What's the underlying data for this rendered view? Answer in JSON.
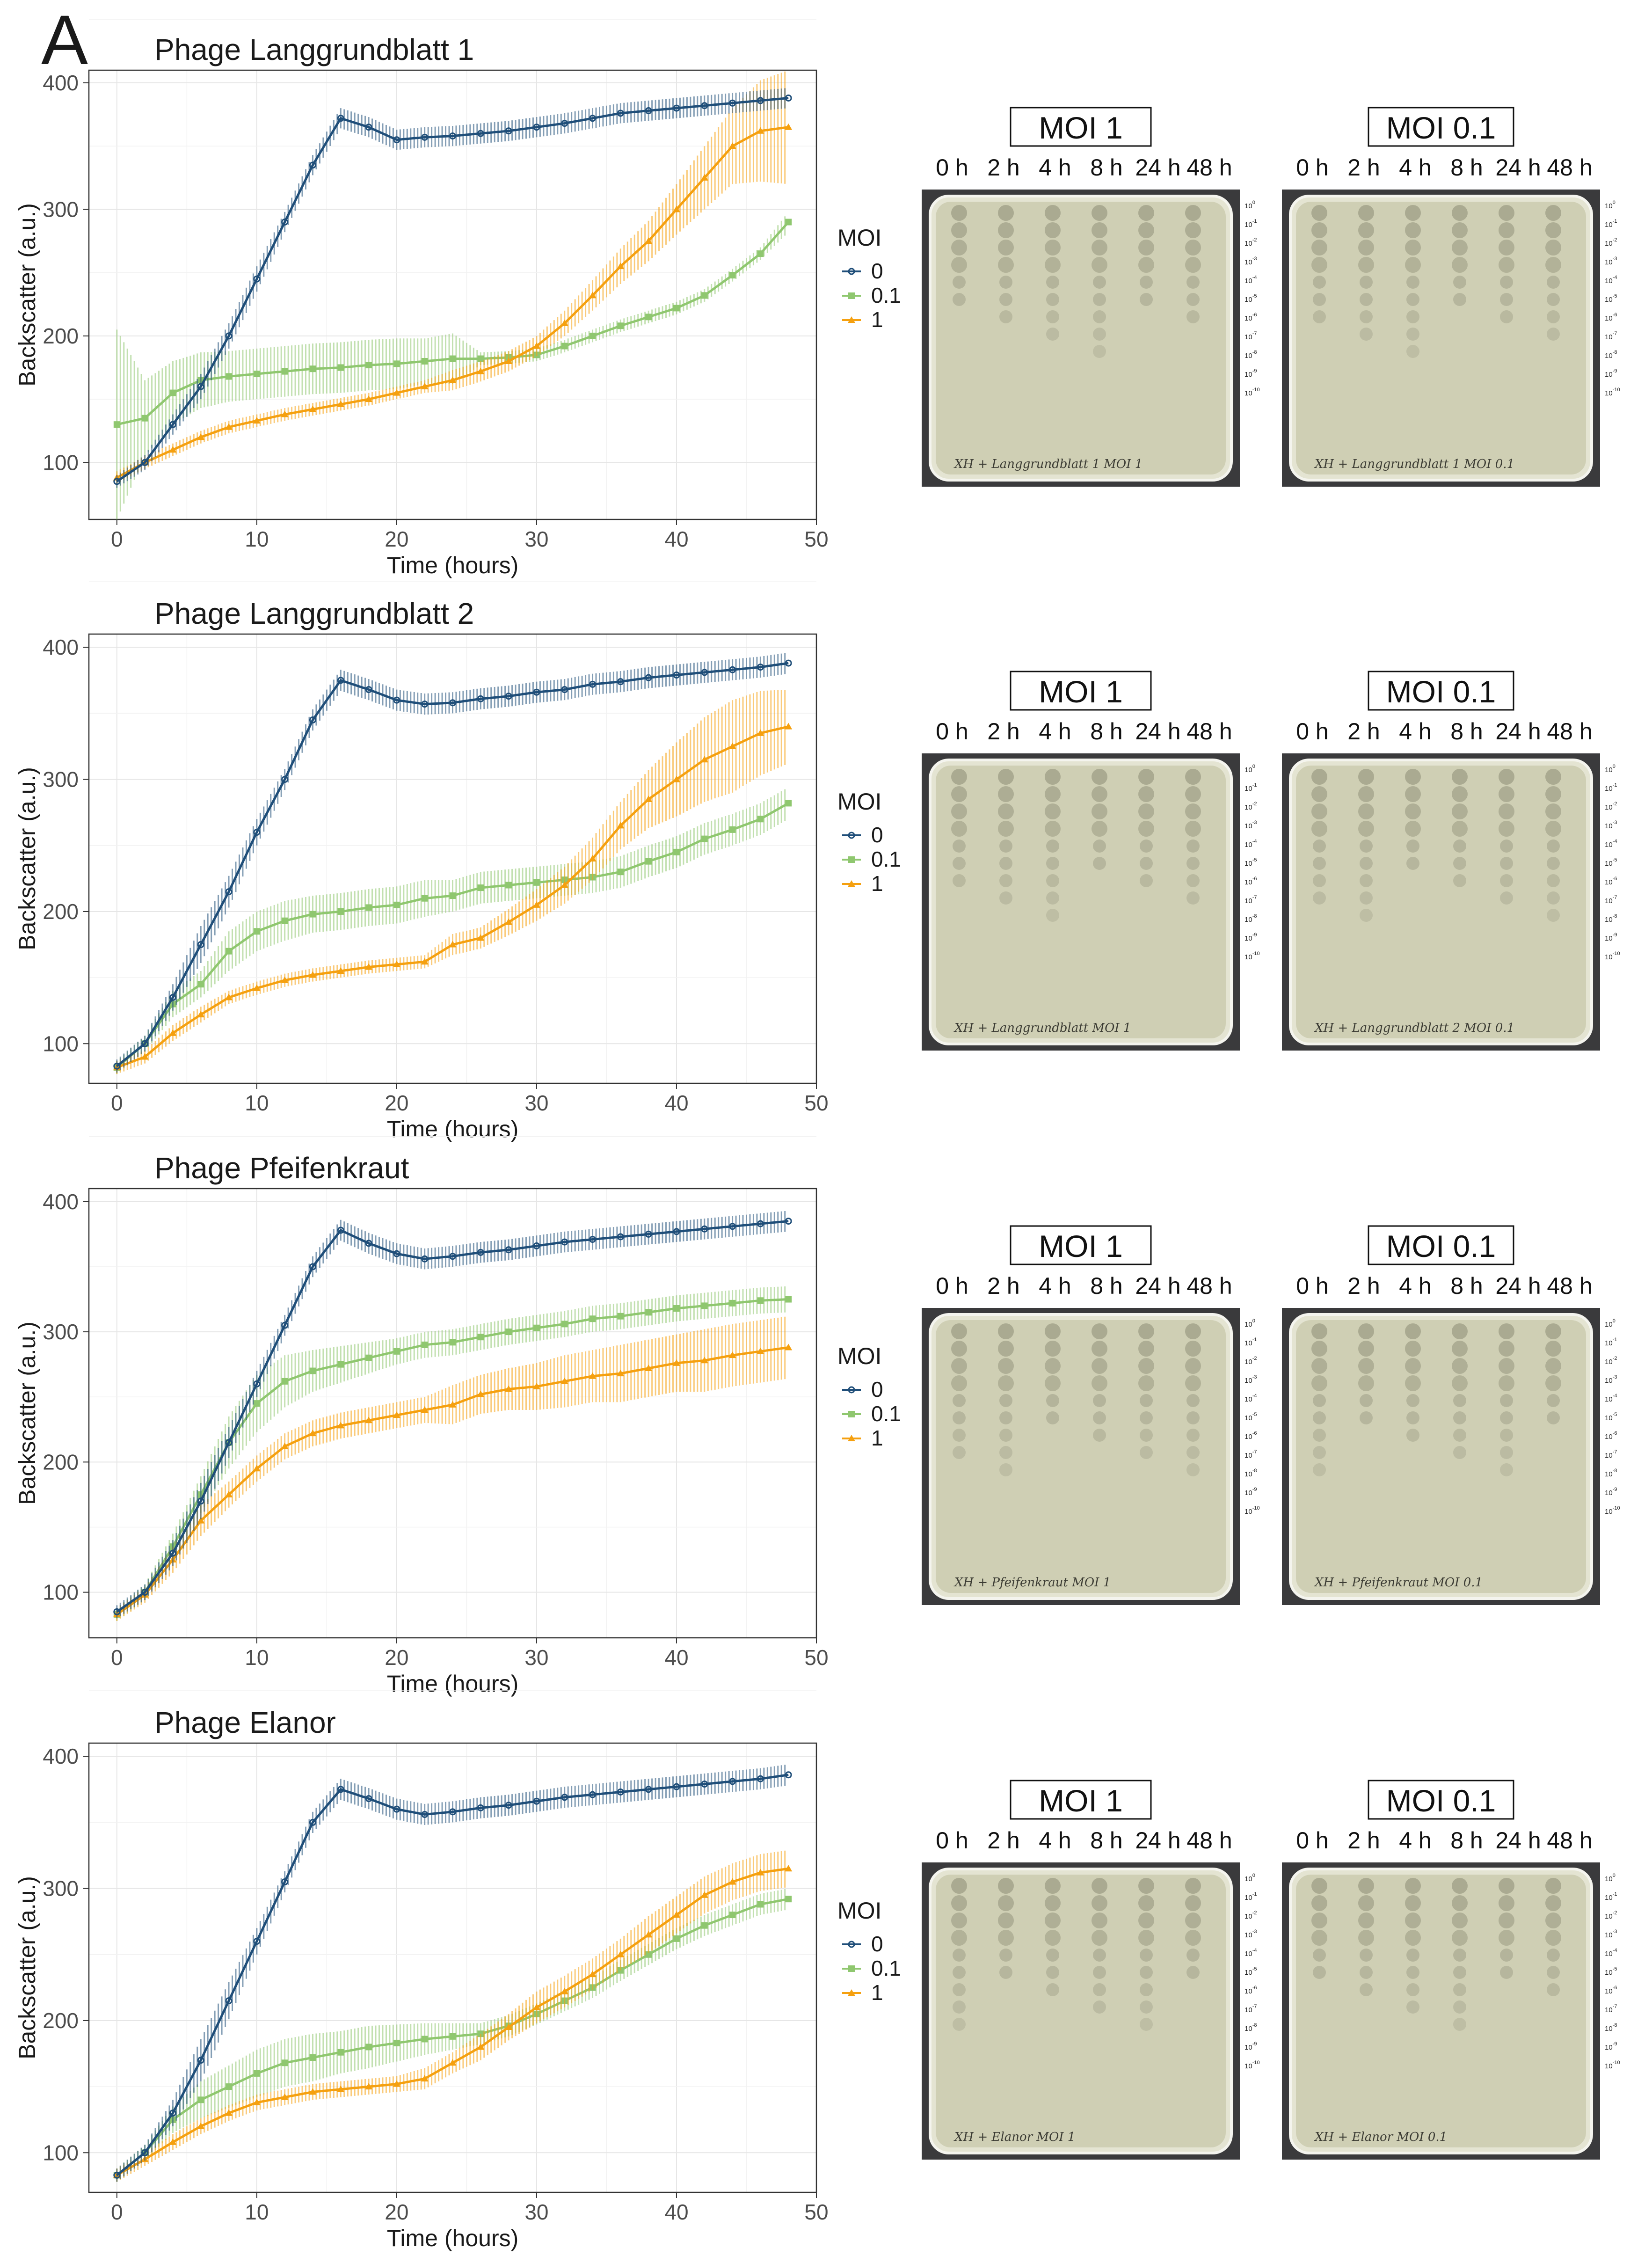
{
  "panel_label": "A",
  "legend": {
    "title": "MOI",
    "entries": [
      {
        "label": "0",
        "color": "#1f4e79",
        "shape": "circle"
      },
      {
        "label": "0.1",
        "color": "#8fc76f",
        "shape": "square"
      },
      {
        "label": "1",
        "color": "#f5a00f",
        "shape": "triangle"
      }
    ]
  },
  "plates": {
    "moi_labels": [
      "MOI 1",
      "MOI 0.1"
    ],
    "timepoints": [
      "0 h",
      "2 h",
      "4 h",
      "8 h",
      "24 h",
      "48 h"
    ],
    "dilution_labels": [
      "10^0",
      "10^-1",
      "10^-2",
      "10^-3",
      "10^-4",
      "10^-5",
      "10^-6",
      "10^-7",
      "10^-8",
      "10^-9",
      "10^-10"
    ],
    "handwritten": [
      [
        "XH + Langgrundblatt 1 MOI 1",
        "XH + Langgrundblatt 1 MOI 0.1"
      ],
      [
        "XH + Langgrundblatt MOI 1",
        "XH + Langgrundblatt 2 MOI 0.1"
      ],
      [
        "XH + Pfeifenkraut MOI 1",
        "XH + Pfeifenkraut MOI 0.1"
      ],
      [
        "XH + Elanor MOI 1",
        "XH + Elanor MOI 0.1"
      ]
    ]
  },
  "chart_data": [
    {
      "type": "line",
      "title": "Phage Langgrundblatt 1",
      "xlabel": "Time (hours)",
      "ylabel": "Backscatter (a.u.)",
      "xlim": [
        -2,
        50
      ],
      "ylim": [
        55,
        410
      ],
      "xticks": [
        0,
        10,
        20,
        30,
        40,
        50
      ],
      "yticks": [
        100,
        200,
        300,
        400
      ],
      "series": [
        {
          "name": "0",
          "x": [
            0,
            2,
            4,
            6,
            8,
            10,
            12,
            14,
            16,
            18,
            20,
            22,
            24,
            26,
            28,
            30,
            32,
            34,
            36,
            38,
            40,
            42,
            44,
            46,
            48
          ],
          "y": [
            85,
            100,
            130,
            160,
            200,
            245,
            290,
            335,
            372,
            365,
            355,
            357,
            358,
            360,
            362,
            365,
            368,
            372,
            376,
            378,
            380,
            382,
            384,
            386,
            388
          ],
          "err": [
            5,
            6,
            8,
            10,
            10,
            10,
            8,
            8,
            8,
            8,
            8,
            8,
            8,
            8,
            8,
            8,
            8,
            8,
            8,
            8,
            8,
            8,
            8,
            8,
            8
          ]
        },
        {
          "name": "0.1",
          "x": [
            0,
            2,
            4,
            6,
            8,
            10,
            12,
            14,
            16,
            18,
            20,
            22,
            24,
            26,
            28,
            30,
            32,
            34,
            36,
            38,
            40,
            42,
            44,
            46,
            48
          ],
          "y": [
            130,
            135,
            155,
            165,
            168,
            170,
            172,
            174,
            175,
            177,
            178,
            180,
            182,
            182,
            183,
            185,
            192,
            200,
            208,
            215,
            222,
            232,
            248,
            265,
            290
          ],
          "err": [
            75,
            30,
            25,
            22,
            20,
            20,
            20,
            20,
            20,
            20,
            20,
            18,
            20,
            5,
            5,
            5,
            5,
            5,
            5,
            5,
            5,
            5,
            5,
            5,
            8
          ]
        },
        {
          "name": "1",
          "x": [
            0,
            2,
            4,
            6,
            8,
            10,
            12,
            14,
            16,
            18,
            20,
            22,
            24,
            26,
            28,
            30,
            32,
            34,
            36,
            38,
            40,
            42,
            44,
            46,
            48
          ],
          "y": [
            88,
            100,
            110,
            120,
            128,
            133,
            138,
            142,
            146,
            150,
            155,
            160,
            165,
            172,
            180,
            192,
            210,
            232,
            255,
            275,
            300,
            325,
            350,
            362,
            365
          ],
          "err": [
            5,
            5,
            5,
            5,
            5,
            5,
            5,
            5,
            5,
            5,
            5,
            5,
            8,
            8,
            8,
            8,
            10,
            12,
            14,
            16,
            20,
            25,
            30,
            40,
            45
          ]
        }
      ]
    },
    {
      "type": "line",
      "title": "Phage Langgrundblatt 2",
      "xlabel": "Time (hours)",
      "ylabel": "Backscatter (a.u.)",
      "xlim": [
        -2,
        50
      ],
      "ylim": [
        70,
        410
      ],
      "xticks": [
        0,
        10,
        20,
        30,
        40,
        50
      ],
      "yticks": [
        100,
        200,
        300,
        400
      ],
      "series": [
        {
          "name": "0",
          "x": [
            0,
            2,
            4,
            6,
            8,
            10,
            12,
            14,
            16,
            18,
            20,
            22,
            24,
            26,
            28,
            30,
            32,
            34,
            36,
            38,
            40,
            42,
            44,
            46,
            48
          ],
          "y": [
            83,
            100,
            135,
            175,
            215,
            260,
            300,
            345,
            375,
            368,
            360,
            357,
            358,
            361,
            363,
            366,
            368,
            372,
            374,
            377,
            379,
            381,
            383,
            385,
            388
          ],
          "err": [
            5,
            6,
            10,
            14,
            12,
            10,
            8,
            8,
            8,
            8,
            8,
            8,
            8,
            8,
            8,
            8,
            8,
            8,
            8,
            8,
            8,
            8,
            8,
            8,
            8
          ]
        },
        {
          "name": "0.1",
          "x": [
            0,
            2,
            4,
            6,
            8,
            10,
            12,
            14,
            16,
            18,
            20,
            22,
            24,
            26,
            28,
            30,
            32,
            34,
            36,
            38,
            40,
            42,
            44,
            46,
            48
          ],
          "y": [
            82,
            100,
            130,
            145,
            170,
            185,
            193,
            198,
            200,
            203,
            205,
            210,
            212,
            218,
            220,
            222,
            224,
            226,
            230,
            238,
            245,
            255,
            262,
            270,
            282
          ],
          "err": [
            5,
            6,
            10,
            10,
            15,
            15,
            15,
            14,
            14,
            14,
            14,
            14,
            12,
            12,
            12,
            12,
            12,
            12,
            12,
            12,
            12,
            12,
            12,
            12,
            12
          ]
        },
        {
          "name": "1",
          "x": [
            0,
            2,
            4,
            6,
            8,
            10,
            12,
            14,
            16,
            18,
            20,
            22,
            24,
            26,
            28,
            30,
            32,
            34,
            36,
            38,
            40,
            42,
            44,
            46,
            48
          ],
          "y": [
            82,
            90,
            108,
            122,
            135,
            142,
            148,
            152,
            155,
            158,
            160,
            162,
            175,
            180,
            192,
            205,
            220,
            240,
            265,
            285,
            300,
            315,
            325,
            335,
            340
          ],
          "err": [
            5,
            5,
            6,
            6,
            5,
            5,
            5,
            5,
            5,
            5,
            5,
            5,
            8,
            8,
            10,
            12,
            14,
            16,
            18,
            22,
            28,
            32,
            35,
            32,
            28
          ]
        }
      ]
    },
    {
      "type": "line",
      "title": "Phage Pfeifenkraut",
      "xlabel": "Time (hours)",
      "ylabel": "Backscatter (a.u.)",
      "xlim": [
        -2,
        50
      ],
      "ylim": [
        65,
        410
      ],
      "xticks": [
        0,
        10,
        20,
        30,
        40,
        50
      ],
      "yticks": [
        100,
        200,
        300,
        400
      ],
      "series": [
        {
          "name": "0",
          "x": [
            0,
            2,
            4,
            6,
            8,
            10,
            12,
            14,
            16,
            18,
            20,
            22,
            24,
            26,
            28,
            30,
            32,
            34,
            36,
            38,
            40,
            42,
            44,
            46,
            48
          ],
          "y": [
            85,
            100,
            130,
            170,
            215,
            260,
            305,
            350,
            378,
            368,
            360,
            356,
            358,
            361,
            363,
            366,
            369,
            371,
            373,
            375,
            377,
            379,
            381,
            383,
            385
          ],
          "err": [
            5,
            6,
            10,
            14,
            12,
            10,
            8,
            8,
            8,
            8,
            8,
            8,
            8,
            8,
            8,
            8,
            8,
            8,
            8,
            8,
            8,
            8,
            8,
            8,
            8
          ]
        },
        {
          "name": "0.1",
          "x": [
            0,
            2,
            4,
            6,
            8,
            10,
            12,
            14,
            16,
            18,
            20,
            22,
            24,
            26,
            28,
            30,
            32,
            34,
            36,
            38,
            40,
            42,
            44,
            46,
            48
          ],
          "y": [
            83,
            100,
            135,
            175,
            215,
            245,
            262,
            270,
            275,
            280,
            285,
            290,
            292,
            296,
            300,
            303,
            306,
            310,
            312,
            315,
            318,
            320,
            322,
            324,
            325
          ],
          "err": [
            5,
            6,
            10,
            14,
            20,
            22,
            20,
            16,
            14,
            12,
            10,
            10,
            10,
            10,
            10,
            10,
            10,
            10,
            10,
            10,
            10,
            10,
            10,
            10,
            10
          ]
        },
        {
          "name": "1",
          "x": [
            0,
            2,
            4,
            6,
            8,
            10,
            12,
            14,
            16,
            18,
            20,
            22,
            24,
            26,
            28,
            30,
            32,
            34,
            36,
            38,
            40,
            42,
            44,
            46,
            48
          ],
          "y": [
            83,
            98,
            125,
            155,
            175,
            195,
            212,
            222,
            228,
            232,
            236,
            240,
            244,
            252,
            256,
            258,
            262,
            266,
            268,
            272,
            276,
            278,
            282,
            285,
            288
          ],
          "err": [
            5,
            6,
            10,
            12,
            10,
            10,
            10,
            10,
            10,
            10,
            10,
            10,
            15,
            15,
            16,
            18,
            20,
            20,
            22,
            22,
            22,
            24,
            24,
            24,
            24
          ]
        }
      ]
    },
    {
      "type": "line",
      "title": "Phage Elanor",
      "xlabel": "Time (hours)",
      "ylabel": "Backscatter (a.u.)",
      "xlim": [
        -2,
        50
      ],
      "ylim": [
        70,
        410
      ],
      "xticks": [
        0,
        10,
        20,
        30,
        40,
        50
      ],
      "yticks": [
        100,
        200,
        300,
        400
      ],
      "series": [
        {
          "name": "0",
          "x": [
            0,
            2,
            4,
            6,
            8,
            10,
            12,
            14,
            16,
            18,
            20,
            22,
            24,
            26,
            28,
            30,
            32,
            34,
            36,
            38,
            40,
            42,
            44,
            46,
            48
          ],
          "y": [
            83,
            100,
            130,
            170,
            215,
            260,
            305,
            350,
            375,
            368,
            360,
            356,
            358,
            361,
            363,
            366,
            369,
            371,
            373,
            375,
            377,
            379,
            381,
            383,
            386
          ],
          "err": [
            5,
            6,
            10,
            16,
            14,
            10,
            8,
            8,
            8,
            8,
            8,
            8,
            8,
            8,
            8,
            8,
            8,
            8,
            8,
            8,
            8,
            8,
            8,
            8,
            8
          ]
        },
        {
          "name": "0.1",
          "x": [
            0,
            2,
            4,
            6,
            8,
            10,
            12,
            14,
            16,
            18,
            20,
            22,
            24,
            26,
            28,
            30,
            32,
            34,
            36,
            38,
            40,
            42,
            44,
            46,
            48
          ],
          "y": [
            83,
            100,
            125,
            140,
            150,
            160,
            168,
            172,
            176,
            180,
            183,
            186,
            188,
            190,
            196,
            205,
            215,
            225,
            238,
            250,
            262,
            272,
            280,
            288,
            292
          ],
          "err": [
            5,
            6,
            10,
            14,
            16,
            18,
            18,
            18,
            16,
            16,
            14,
            12,
            10,
            8,
            8,
            8,
            8,
            8,
            8,
            8,
            8,
            8,
            8,
            8,
            8
          ]
        },
        {
          "name": "1",
          "x": [
            0,
            2,
            4,
            6,
            8,
            10,
            12,
            14,
            16,
            18,
            20,
            22,
            24,
            26,
            28,
            30,
            32,
            34,
            36,
            38,
            40,
            42,
            44,
            46,
            48
          ],
          "y": [
            83,
            95,
            108,
            120,
            130,
            138,
            142,
            146,
            148,
            150,
            152,
            156,
            168,
            180,
            195,
            210,
            222,
            235,
            250,
            265,
            280,
            295,
            305,
            312,
            315
          ],
          "err": [
            5,
            5,
            6,
            6,
            6,
            6,
            6,
            6,
            6,
            6,
            6,
            8,
            8,
            10,
            10,
            12,
            12,
            12,
            12,
            14,
            14,
            14,
            14,
            14,
            14
          ]
        }
      ]
    }
  ]
}
